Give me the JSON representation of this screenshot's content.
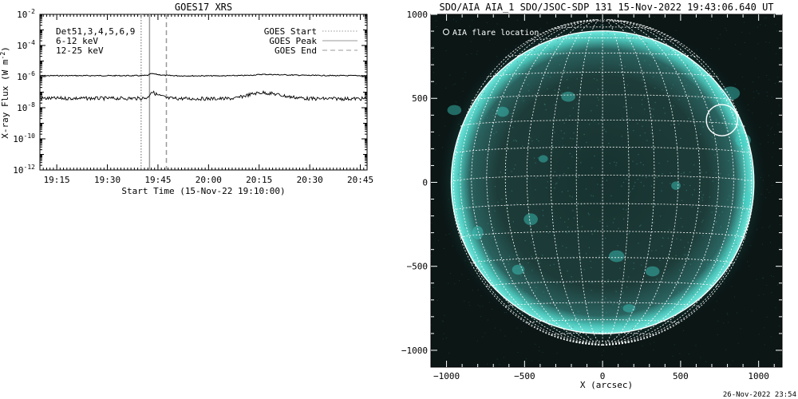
{
  "chart_data": [
    {
      "type": "line",
      "title": "GOES17 XRS",
      "xlabel": "Start Time (15-Nov-22 19:10:00)",
      "ylabel": "X-ray Flux (W m",
      "ylabel_exp": "-2",
      "ylabel_close": ")",
      "yscale": "log",
      "ylim": [
        1e-12,
        0.01
      ],
      "xlim_minutes": [
        0,
        97
      ],
      "x_ticks": [
        {
          "min": 5,
          "label": "19:15"
        },
        {
          "min": 20,
          "label": "19:30"
        },
        {
          "min": 35,
          "label": "19:45"
        },
        {
          "min": 50,
          "label": "20:00"
        },
        {
          "min": 65,
          "label": "20:15"
        },
        {
          "min": 80,
          "label": "20:30"
        },
        {
          "min": 95,
          "label": "20:45"
        }
      ],
      "y_ticks": [
        {
          "exp": -2,
          "label": "10",
          "sup": "-2"
        },
        {
          "exp": -4,
          "label": "10",
          "sup": "-4"
        },
        {
          "exp": -6,
          "label": "10",
          "sup": "-6"
        },
        {
          "exp": -8,
          "label": "10",
          "sup": "-8"
        },
        {
          "exp": -10,
          "label": "10",
          "sup": "-10"
        },
        {
          "exp": -12,
          "label": "10",
          "sup": "-12"
        }
      ],
      "annotations": {
        "detectors": "Det51,3,4,5,6,9",
        "band_low": "6-12 keV",
        "band_high": "12-25 keV",
        "band_low_color": "#e000e0",
        "band_high_color": "#00d000"
      },
      "legend": [
        {
          "name": "GOES Start",
          "style": "dotted",
          "min": 30
        },
        {
          "name": "GOES Peak",
          "style": "solid",
          "min": 32.5
        },
        {
          "name": "GOES End",
          "style": "dashed",
          "min": 37.5
        }
      ],
      "series": [
        {
          "name": "6-12 keV",
          "color": "#000000",
          "points": [
            [
              0,
              1.15e-06
            ],
            [
              30,
              1.15e-06
            ],
            [
              32,
              1.2e-06
            ],
            [
              33,
              1.55e-06
            ],
            [
              35,
              1.35e-06
            ],
            [
              37,
              1.2e-06
            ],
            [
              42,
              1.12e-06
            ],
            [
              55,
              1.12e-06
            ],
            [
              62,
              1.2e-06
            ],
            [
              66,
              1.4e-06
            ],
            [
              72,
              1.3e-06
            ],
            [
              80,
              1.2e-06
            ],
            [
              90,
              1.15e-06
            ],
            [
              97,
              1.15e-06
            ]
          ]
        },
        {
          "name": "12-25 keV",
          "color": "#000000",
          "points": [
            [
              0,
              4e-08
            ],
            [
              30,
              4e-08
            ],
            [
              32,
              4.5e-08
            ],
            [
              33,
              1.1e-07
            ],
            [
              35,
              6.5e-08
            ],
            [
              38,
              4e-08
            ],
            [
              45,
              3.8e-08
            ],
            [
              55,
              3.8e-08
            ],
            [
              58,
              4e-08
            ],
            [
              61,
              6e-08
            ],
            [
              64,
              8.5e-08
            ],
            [
              66,
              9.5e-08
            ],
            [
              69,
              8e-08
            ],
            [
              74,
              5e-08
            ],
            [
              80,
              3.8e-08
            ],
            [
              90,
              3.8e-08
            ],
            [
              97,
              3.8e-08
            ]
          ]
        }
      ]
    },
    {
      "type": "heatmap",
      "title": "SDO/AIA AIA_1 SDO/JSOC-SDP 131 15-Nov-2022 19:43:06.640 UT",
      "xlabel": "X (arcsec)",
      "ylabel": "",
      "xlim": [
        -1100,
        1150
      ],
      "ylim": [
        -1100,
        1000
      ],
      "x_ticks": [
        -1000,
        -500,
        0,
        500,
        1000
      ],
      "y_ticks": [
        -1000,
        -500,
        0,
        500,
        1000
      ],
      "x_tick_labels": [
        "−1000",
        "−500",
        "0",
        "500",
        "1000"
      ],
      "y_tick_labels": [
        "−1000",
        "−500",
        "0",
        "500",
        "1000"
      ],
      "solar_radius_arcsec": 970,
      "grid_spacing_deg": 10,
      "legend_label": "AIA flare location",
      "flare": {
        "x": 765,
        "y": 370,
        "radius": 100
      },
      "color_disk": "#1a3a36",
      "color_limb": "#3fd1c6",
      "color_bright": "#8ff5ec"
    }
  ],
  "footer": {
    "timestamp": "26-Nov-2022 23:54"
  }
}
